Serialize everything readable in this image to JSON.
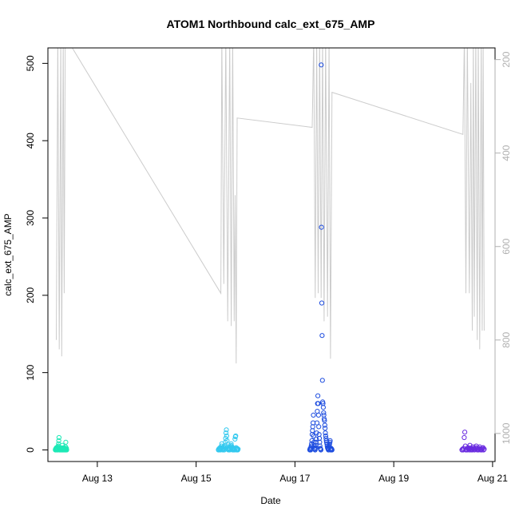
{
  "chart_data": {
    "type": "scatter",
    "title": "ATOM1 Northbound calc_ext_675_AMP",
    "xlabel": "Date",
    "ylabel": "calc_ext_675_AMP",
    "x_range_days": [
      12.0,
      21.05
    ],
    "ylim": [
      -15,
      520
    ],
    "y2lim": [
      1060,
      175
    ],
    "y2_reversed": true,
    "x_ticks": [
      {
        "value": 13,
        "label": "Aug 13"
      },
      {
        "value": 15,
        "label": "Aug 15"
      },
      {
        "value": 17,
        "label": "Aug 17"
      },
      {
        "value": 19,
        "label": "Aug 19"
      },
      {
        "value": 21,
        "label": "Aug 21"
      }
    ],
    "y_ticks": [
      0,
      100,
      200,
      300,
      400,
      500
    ],
    "y2_ticks": [
      200,
      400,
      600,
      800,
      1000
    ],
    "line_color": "#cccccc",
    "depth_line": [
      [
        12.17,
        800
      ],
      [
        12.2,
        150
      ],
      [
        12.23,
        820
      ],
      [
        12.26,
        150
      ],
      [
        12.28,
        835
      ],
      [
        12.31,
        150
      ],
      [
        12.33,
        700
      ],
      [
        12.35,
        150
      ],
      [
        15.5,
        700
      ],
      [
        15.52,
        150
      ],
      [
        15.56,
        680
      ],
      [
        15.6,
        150
      ],
      [
        15.64,
        760
      ],
      [
        15.68,
        150
      ],
      [
        15.71,
        770
      ],
      [
        15.74,
        150
      ],
      [
        15.77,
        760
      ],
      [
        15.79,
        490
      ],
      [
        15.81,
        850
      ],
      [
        15.83,
        325
      ],
      [
        17.35,
        345
      ],
      [
        17.38,
        150
      ],
      [
        17.41,
        710
      ],
      [
        17.44,
        150
      ],
      [
        17.47,
        700
      ],
      [
        17.5,
        150
      ],
      [
        17.53,
        710
      ],
      [
        17.56,
        150
      ],
      [
        17.59,
        760
      ],
      [
        17.62,
        150
      ],
      [
        17.66,
        750
      ],
      [
        17.69,
        150
      ],
      [
        17.72,
        840
      ],
      [
        17.75,
        270
      ],
      [
        20.4,
        360
      ],
      [
        20.43,
        150
      ],
      [
        20.46,
        700
      ],
      [
        20.49,
        150
      ],
      [
        20.53,
        700
      ],
      [
        20.56,
        250
      ],
      [
        20.59,
        780
      ],
      [
        20.61,
        150
      ],
      [
        20.63,
        750
      ],
      [
        20.66,
        150
      ],
      [
        20.69,
        800
      ],
      [
        20.71,
        150
      ],
      [
        20.74,
        820
      ],
      [
        20.77,
        150
      ],
      [
        20.79,
        780
      ],
      [
        20.81,
        160
      ],
      [
        20.83,
        780
      ]
    ],
    "point_clusters": [
      {
        "color": "#1de9b6",
        "x_start": 12.15,
        "x_end": 12.38,
        "values": [
          0,
          1,
          0,
          2,
          1,
          3,
          0,
          0,
          1,
          2,
          4,
          0,
          1,
          5,
          8,
          12,
          16,
          0,
          1,
          0,
          2,
          0,
          1,
          3,
          1,
          0,
          0,
          2,
          1,
          0,
          6,
          0,
          1,
          0,
          2,
          0,
          1,
          3,
          0,
          1,
          2,
          0,
          0,
          1,
          4,
          10,
          0,
          1,
          2,
          0
        ]
      },
      {
        "color": "#33c9ef",
        "x_start": 15.45,
        "x_end": 15.85,
        "values": [
          0,
          1,
          0,
          2,
          1,
          3,
          0,
          1,
          2,
          5,
          8,
          3,
          1,
          0,
          2,
          4,
          1,
          0,
          3,
          6,
          10,
          15,
          22,
          26,
          18,
          12,
          4,
          2,
          1,
          0,
          1,
          3,
          2,
          0,
          1,
          4,
          6,
          8,
          5,
          2,
          1,
          0,
          2,
          1,
          0,
          1,
          2,
          0,
          14,
          17,
          18,
          3,
          1,
          0,
          2,
          1,
          0,
          1
        ]
      },
      {
        "color": "#1e4ddf",
        "x_start": 17.3,
        "x_end": 17.75,
        "values": [
          0,
          1,
          2,
          0,
          3,
          5,
          8,
          12,
          20,
          25,
          30,
          35,
          45,
          18,
          10,
          5,
          2,
          1,
          0,
          3,
          6,
          10,
          14,
          22,
          35,
          50,
          60,
          70,
          60,
          45,
          30,
          20,
          15,
          10,
          5,
          2,
          1,
          0,
          498,
          288,
          190,
          148,
          90,
          62,
          60,
          55,
          48,
          45,
          40,
          38,
          32,
          28,
          22,
          18,
          15,
          12,
          10,
          8,
          5,
          3,
          2,
          1,
          0,
          2,
          4,
          6,
          8,
          10,
          12,
          0,
          1,
          2,
          0,
          1,
          0
        ]
      },
      {
        "color": "#6a2ce0",
        "x_start": 20.38,
        "x_end": 20.83,
        "values": [
          0,
          1,
          0,
          2,
          16,
          23,
          5,
          0,
          1,
          0,
          2,
          3,
          1,
          0,
          6,
          2,
          0,
          1,
          0,
          4,
          2,
          1,
          0,
          1,
          3,
          5,
          2,
          0,
          1,
          0,
          2,
          4,
          1,
          0,
          1,
          0,
          2,
          3,
          0,
          1
        ]
      }
    ]
  }
}
